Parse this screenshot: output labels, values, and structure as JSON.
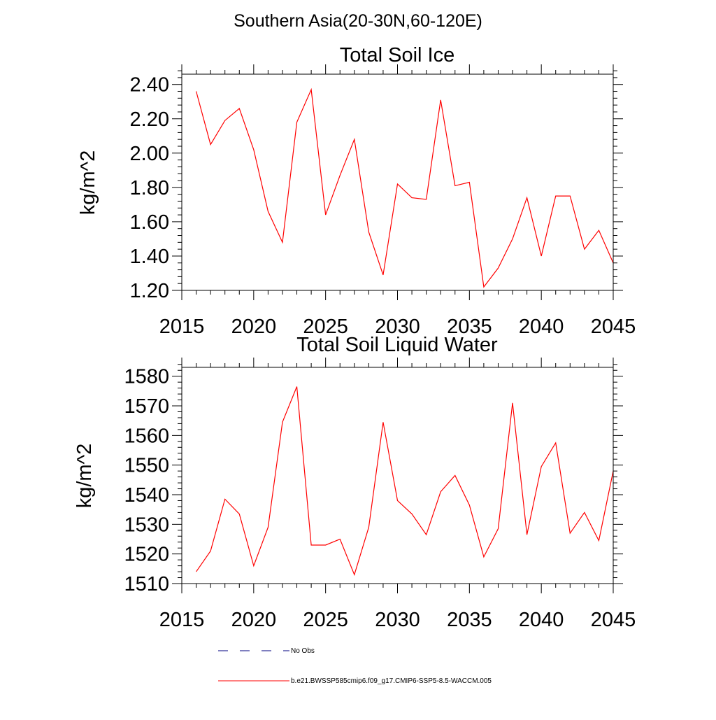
{
  "figure_title": "Southern Asia(20-30N,60-120E)",
  "legend": {
    "obs_label": "No Obs",
    "model_label": "b.e21.BWSSP585cmip6.f09_g17.CMIP6-SSP5-8.5-WACCM.005",
    "model_color": "#ff0000",
    "obs_color": "#000080"
  },
  "chart_data": [
    {
      "type": "line",
      "title": "Total Soil Ice",
      "xlabel": "",
      "ylabel": "kg/m^2",
      "xlim": [
        2015,
        2045
      ],
      "ylim": [
        1.2,
        2.46
      ],
      "xticks": [
        2015,
        2020,
        2025,
        2030,
        2035,
        2040,
        2045
      ],
      "xtick_labels": [
        "2015",
        "2020",
        "2025",
        "2030",
        "2035",
        "2040",
        "2045"
      ],
      "yticks": [
        1.2,
        1.4,
        1.6,
        1.8,
        2.0,
        2.2,
        2.4
      ],
      "ytick_labels": [
        "1.20",
        "1.40",
        "1.60",
        "1.80",
        "2.00",
        "2.20",
        "2.40"
      ],
      "grid": false,
      "series": [
        {
          "name": "b.e21.BWSSP585cmip6.f09_g17.CMIP6-SSP5-8.5-WACCM.005",
          "color": "#ff0000",
          "x": [
            2016,
            2017,
            2018,
            2019,
            2020,
            2021,
            2022,
            2023,
            2024,
            2025,
            2026,
            2027,
            2028,
            2029,
            2030,
            2031,
            2032,
            2033,
            2034,
            2035,
            2036,
            2037,
            2038,
            2039,
            2040,
            2041,
            2042,
            2043,
            2044,
            2045
          ],
          "values": [
            2.36,
            2.05,
            2.19,
            2.26,
            2.02,
            1.66,
            1.48,
            2.18,
            2.37,
            1.64,
            1.87,
            2.08,
            1.54,
            1.29,
            1.82,
            1.74,
            1.73,
            2.31,
            1.81,
            1.83,
            1.22,
            1.33,
            1.5,
            1.74,
            1.4,
            1.75,
            1.75,
            1.44,
            1.55,
            1.36
          ]
        }
      ]
    },
    {
      "type": "line",
      "title": "Total Soil Liquid Water",
      "xlabel": "",
      "ylabel": "kg/m^2",
      "xlim": [
        2015,
        2045
      ],
      "ylim": [
        1510,
        1583
      ],
      "xticks": [
        2015,
        2020,
        2025,
        2030,
        2035,
        2040,
        2045
      ],
      "xtick_labels": [
        "2015",
        "2020",
        "2025",
        "2030",
        "2035",
        "2040",
        "2045"
      ],
      "yticks": [
        1510,
        1520,
        1530,
        1540,
        1550,
        1560,
        1570,
        1580
      ],
      "ytick_labels": [
        "1510",
        "1520",
        "1530",
        "1540",
        "1550",
        "1560",
        "1570",
        "1580"
      ],
      "grid": false,
      "series": [
        {
          "name": "b.e21.BWSSP585cmip6.f09_g17.CMIP6-SSP5-8.5-WACCM.005",
          "color": "#ff0000",
          "x": [
            2016,
            2017,
            2018,
            2019,
            2020,
            2021,
            2022,
            2023,
            2024,
            2025,
            2026,
            2027,
            2028,
            2029,
            2030,
            2031,
            2032,
            2033,
            2034,
            2035,
            2036,
            2037,
            2038,
            2039,
            2040,
            2041,
            2042,
            2043,
            2044,
            2045
          ],
          "values": [
            1514,
            1521,
            1538.5,
            1533.5,
            1516,
            1529,
            1564.5,
            1576.5,
            1523,
            1523,
            1525,
            1513,
            1529,
            1564.5,
            1538,
            1533.5,
            1526.5,
            1541,
            1546.5,
            1536.5,
            1519,
            1528.5,
            1571,
            1526.5,
            1549.5,
            1557.5,
            1527,
            1534,
            1524.5,
            1548
          ]
        }
      ]
    }
  ]
}
